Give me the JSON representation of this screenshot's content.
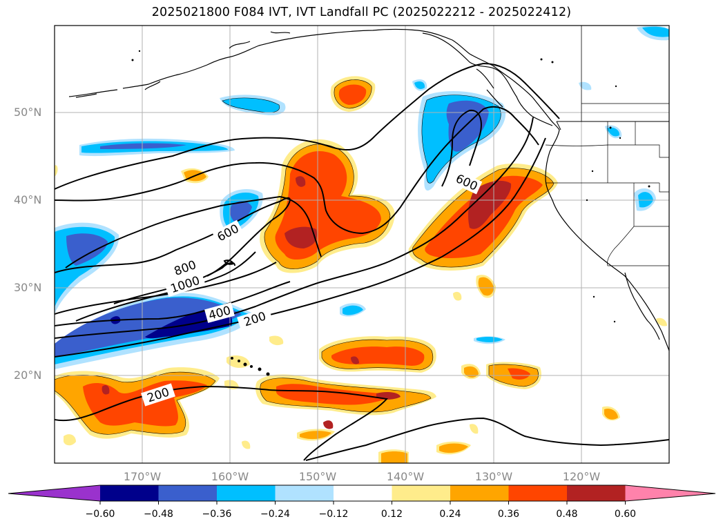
{
  "title": "2025021800 F084 IVT, IVT Landfall PC (2025022212 - 2025022412)",
  "axes": {
    "lat_labels": [
      "50°N",
      "40°N",
      "30°N",
      "20°N"
    ],
    "lon_labels": [
      "170°W",
      "160°W",
      "150°W",
      "140°W",
      "130°W",
      "120°W"
    ]
  },
  "contours": {
    "labels": [
      "600",
      "800",
      "1000",
      "400",
      "200",
      "600",
      "200"
    ]
  },
  "colorbar": {
    "ticks": [
      "−0.60",
      "−0.48",
      "−0.36",
      "−0.24",
      "−0.12",
      "0.12",
      "0.24",
      "0.36",
      "0.48",
      "0.60"
    ],
    "colors": [
      "#9a32cd",
      "#00008b",
      "#3a5fcd",
      "#00bfff",
      "#b0e2ff",
      "#ffffff",
      "#ffec8b",
      "#ffa500",
      "#ff4500",
      "#b22222",
      "#ff82ab"
    ]
  },
  "colors": {
    "grid": "#b0b0b0",
    "coast": "#000000",
    "label_gray": "#888888"
  }
}
